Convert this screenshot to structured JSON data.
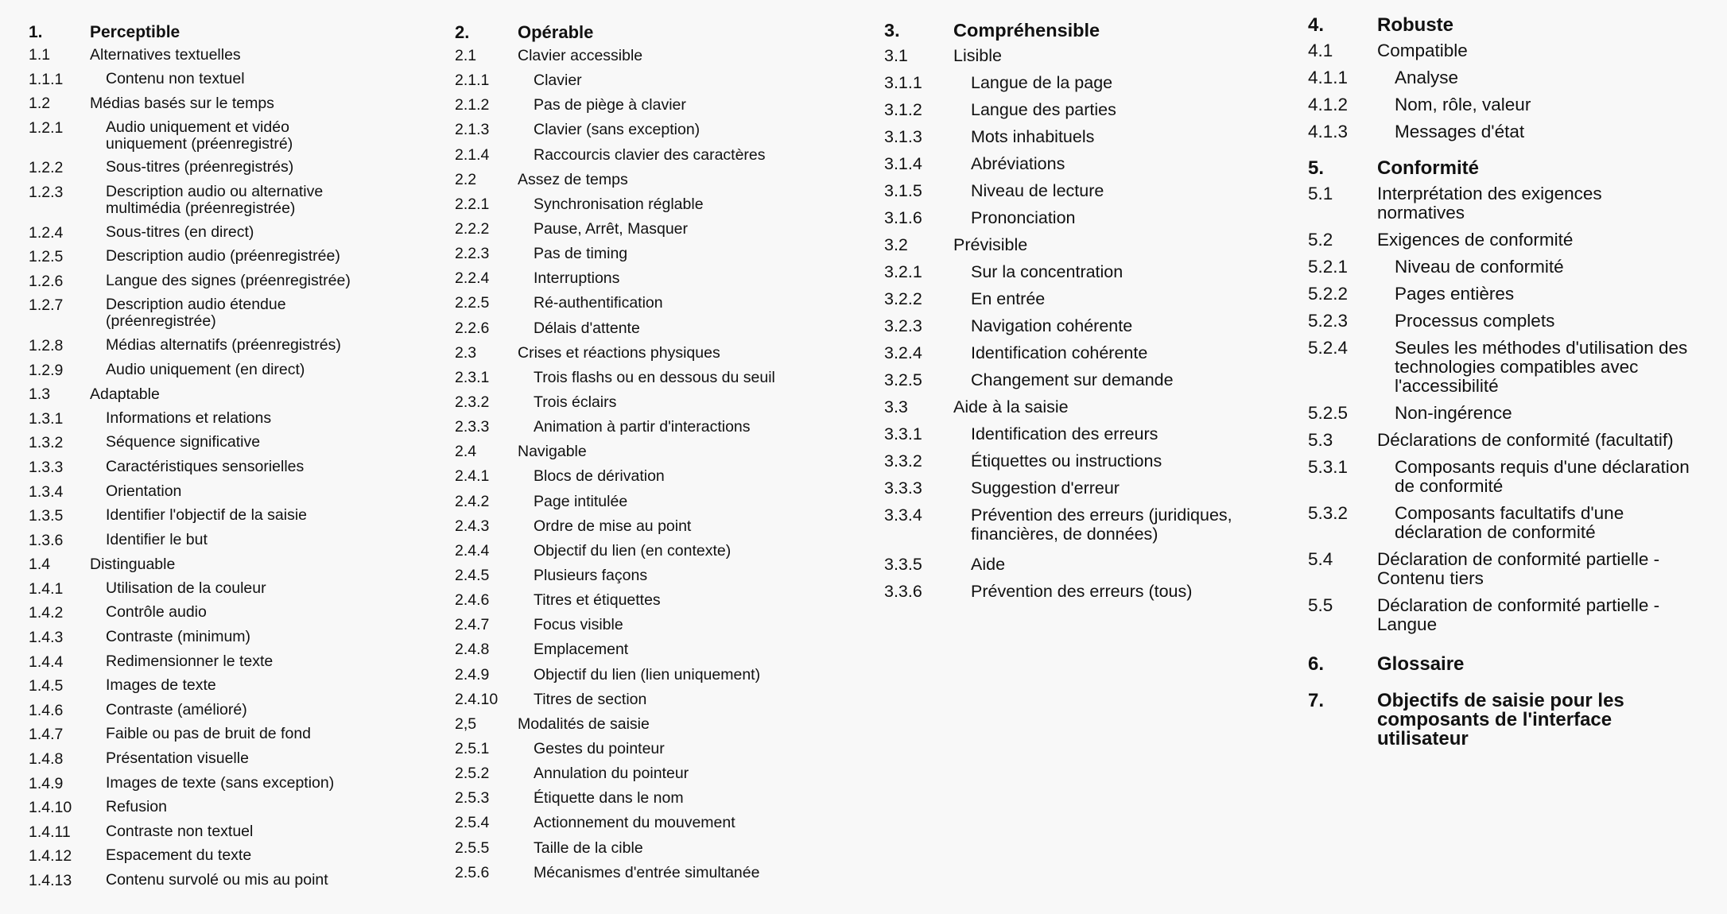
{
  "columns": [
    {
      "items": [
        {
          "num": "1.",
          "label": "Perceptible",
          "level": 0
        },
        {
          "num": "1.1",
          "label": "Alternatives textuelles",
          "level": 1
        },
        {
          "num": "1.1.1",
          "label": "Contenu non textuel",
          "level": 2
        },
        {
          "num": "1.2",
          "label": "Médias basés sur le temps",
          "level": 1
        },
        {
          "num": "1.2.1",
          "label": "Audio uniquement et vidéo\nuniquement (préenregistré)",
          "level": 2
        },
        {
          "num": "1.2.2",
          "label": "Sous-titres (préenregistrés)",
          "level": 2
        },
        {
          "num": "1.2.3",
          "label": "Description audio ou alternative\nmultimédia (préenregistrée)",
          "level": 2
        },
        {
          "num": "1.2.4",
          "label": "Sous-titres (en direct)",
          "level": 2
        },
        {
          "num": "1.2.5",
          "label": "Description audio (préenregistrée)",
          "level": 2
        },
        {
          "num": "1.2.6",
          "label": "Langue des signes (préenregistrée)",
          "level": 2
        },
        {
          "num": "1.2.7",
          "label": "Description audio étendue\n(préenregistrée)",
          "level": 2
        },
        {
          "num": "1.2.8",
          "label": "Médias alternatifs (préenregistrés)",
          "level": 2
        },
        {
          "num": "1.2.9",
          "label": "Audio uniquement (en direct)",
          "level": 2
        },
        {
          "num": "1.3",
          "label": "Adaptable",
          "level": 1
        },
        {
          "num": "1.3.1",
          "label": "Informations et relations",
          "level": 2
        },
        {
          "num": "1.3.2",
          "label": "Séquence significative",
          "level": 2
        },
        {
          "num": "1.3.3",
          "label": "Caractéristiques sensorielles",
          "level": 2
        },
        {
          "num": "1.3.4",
          "label": "Orientation",
          "level": 2
        },
        {
          "num": "1.3.5",
          "label": "Identifier l'objectif de la saisie",
          "level": 2
        },
        {
          "num": "1.3.6",
          "label": "Identifier le but",
          "level": 2
        },
        {
          "num": "1.4",
          "label": "Distinguable",
          "level": 1
        },
        {
          "num": "1.4.1",
          "label": "Utilisation de la couleur",
          "level": 2
        },
        {
          "num": "1.4.2",
          "label": "Contrôle audio",
          "level": 2
        },
        {
          "num": "1.4.3",
          "label": "Contraste (minimum)",
          "level": 2
        },
        {
          "num": "1.4.4",
          "label": "Redimensionner le texte",
          "level": 2
        },
        {
          "num": "1.4.5",
          "label": "Images de texte",
          "level": 2
        },
        {
          "num": "1.4.6",
          "label": "Contraste (amélioré)",
          "level": 2
        },
        {
          "num": "1.4.7",
          "label": "Faible ou pas de bruit de fond",
          "level": 2
        },
        {
          "num": "1.4.8",
          "label": "Présentation visuelle",
          "level": 2
        },
        {
          "num": "1.4.9",
          "label": "Images de texte (sans exception)",
          "level": 2
        },
        {
          "num": "1.4.10",
          "label": "Refusion",
          "level": 2
        },
        {
          "num": "1.4.11",
          "label": "Contraste non textuel",
          "level": 2
        },
        {
          "num": "1.4.12",
          "label": "Espacement du texte",
          "level": 2
        },
        {
          "num": "1.4.13",
          "label": "Contenu survolé ou mis au point",
          "level": 2
        }
      ]
    },
    {
      "items": [
        {
          "num": "2.",
          "label": "Opérable",
          "level": 0
        },
        {
          "num": "2.1",
          "label": "Clavier accessible",
          "level": 1
        },
        {
          "num": "2.1.1",
          "label": "Clavier",
          "level": 2
        },
        {
          "num": "2.1.2",
          "label": "Pas de piège à clavier",
          "level": 2
        },
        {
          "num": "2.1.3",
          "label": "Clavier (sans exception)",
          "level": 2
        },
        {
          "num": "2.1.4",
          "label": "Raccourcis clavier des caractères",
          "level": 2
        },
        {
          "num": "2.2",
          "label": "Assez de temps",
          "level": 1
        },
        {
          "num": "2.2.1",
          "label": "Synchronisation réglable",
          "level": 2
        },
        {
          "num": "2.2.2",
          "label": "Pause, Arrêt, Masquer",
          "level": 2
        },
        {
          "num": "2.2.3",
          "label": "Pas de timing",
          "level": 2
        },
        {
          "num": "2.2.4",
          "label": "Interruptions",
          "level": 2
        },
        {
          "num": "2.2.5",
          "label": "Ré-authentification",
          "level": 2
        },
        {
          "num": "2.2.6",
          "label": "Délais d'attente",
          "level": 2
        },
        {
          "num": "2.3",
          "label": "Crises et réactions physiques",
          "level": 1
        },
        {
          "num": "2.3.1",
          "label": "Trois flashs ou en dessous du seuil",
          "level": 2
        },
        {
          "num": "2.3.2",
          "label": "Trois éclairs",
          "level": 2
        },
        {
          "num": "2.3.3",
          "label": "Animation à partir d'interactions",
          "level": 2
        },
        {
          "num": "2.4",
          "label": "Navigable",
          "level": 1
        },
        {
          "num": "2.4.1",
          "label": "Blocs de dérivation",
          "level": 2
        },
        {
          "num": "2.4.2",
          "label": "Page intitulée",
          "level": 2
        },
        {
          "num": "2.4.3",
          "label": "Ordre de mise au point",
          "level": 2
        },
        {
          "num": "2.4.4",
          "label": "Objectif du lien (en contexte)",
          "level": 2
        },
        {
          "num": "2.4.5",
          "label": "Plusieurs façons",
          "level": 2
        },
        {
          "num": "2.4.6",
          "label": "Titres et étiquettes",
          "level": 2
        },
        {
          "num": "2.4.7",
          "label": "Focus visible",
          "level": 2
        },
        {
          "num": "2.4.8",
          "label": "Emplacement",
          "level": 2
        },
        {
          "num": "2.4.9",
          "label": "Objectif du lien (lien uniquement)",
          "level": 2
        },
        {
          "num": "2.4.10",
          "label": "Titres de section",
          "level": 2
        },
        {
          "num": "2,5",
          "label": "Modalités de saisie",
          "level": 1
        },
        {
          "num": "2.5.1",
          "label": "Gestes du pointeur",
          "level": 2
        },
        {
          "num": "2.5.2",
          "label": "Annulation du pointeur",
          "level": 2
        },
        {
          "num": "2.5.3",
          "label": "Étiquette dans le nom",
          "level": 2
        },
        {
          "num": "2.5.4",
          "label": "Actionnement du mouvement",
          "level": 2
        },
        {
          "num": "2.5.5",
          "label": "Taille de la cible",
          "level": 2
        },
        {
          "num": "2.5.6",
          "label": "Mécanismes d'entrée simultanée",
          "level": 2
        }
      ]
    },
    {
      "items": [
        {
          "num": "3.",
          "label": "Compréhensible",
          "level": 0
        },
        {
          "num": "3.1",
          "label": "Lisible",
          "level": 1
        },
        {
          "num": "3.1.1",
          "label": "Langue de la page",
          "level": 2
        },
        {
          "num": "3.1.2",
          "label": "Langue des parties",
          "level": 2
        },
        {
          "num": "3.1.3",
          "label": "Mots inhabituels",
          "level": 2
        },
        {
          "num": "3.1.4",
          "label": "Abréviations",
          "level": 2
        },
        {
          "num": "3.1.5",
          "label": "Niveau de lecture",
          "level": 2
        },
        {
          "num": "3.1.6",
          "label": "Prononciation",
          "level": 2
        },
        {
          "num": "3.2",
          "label": "Prévisible",
          "level": 1
        },
        {
          "num": "3.2.1",
          "label": "Sur la concentration",
          "level": 2
        },
        {
          "num": "3.2.2",
          "label": "En entrée",
          "level": 2
        },
        {
          "num": "3.2.3",
          "label": "Navigation cohérente",
          "level": 2
        },
        {
          "num": "3.2.4",
          "label": "Identification cohérente",
          "level": 2
        },
        {
          "num": "3.2.5",
          "label": "Changement sur demande",
          "level": 2
        },
        {
          "num": "3.3",
          "label": "Aide à la saisie",
          "level": 1
        },
        {
          "num": "3.3.1",
          "label": "Identification des erreurs",
          "level": 2
        },
        {
          "num": "3.3.2",
          "label": "Étiquettes ou instructions",
          "level": 2
        },
        {
          "num": "3.3.3",
          "label": "Suggestion d'erreur",
          "level": 2
        },
        {
          "num": "3.3.4",
          "label": "Prévention des erreurs (juridiques,\nfinancières, de données)",
          "level": 2
        },
        {
          "num": "3.3.5",
          "label": "Aide",
          "level": 2
        },
        {
          "num": "3.3.6",
          "label": "Prévention des erreurs (tous)",
          "level": 2
        }
      ]
    },
    {
      "items": [
        {
          "num": "4.",
          "label": "Robuste",
          "level": 0
        },
        {
          "num": "4.1",
          "label": "Compatible",
          "level": 1
        },
        {
          "num": "4.1.1",
          "label": "Analyse",
          "level": 2
        },
        {
          "num": "4.1.2",
          "label": "Nom, rôle, valeur",
          "level": 2
        },
        {
          "num": "4.1.3",
          "label": "Messages d'état",
          "level": 2
        },
        {
          "num": "5.",
          "label": "Conformité",
          "level": 0
        },
        {
          "num": "5.1",
          "label": "Interprétation des exigences\nnormatives",
          "level": 1
        },
        {
          "num": "5.2",
          "label": "Exigences de conformité",
          "level": 1
        },
        {
          "num": "5.2.1",
          "label": "Niveau de conformité",
          "level": 2
        },
        {
          "num": "5.2.2",
          "label": "Pages entières",
          "level": 2
        },
        {
          "num": "5.2.3",
          "label": "Processus complets",
          "level": 2
        },
        {
          "num": "5.2.4",
          "label": "Seules les méthodes d'utilisation des\ntechnologies compatibles avec\nl'accessibilité",
          "level": 2
        },
        {
          "num": "5.2.5",
          "label": "Non-ingérence",
          "level": 2
        },
        {
          "num": "5.3",
          "label": "Déclarations de conformité (facultatif)",
          "level": 1
        },
        {
          "num": "5.3.1",
          "label": "Composants requis d'une déclaration\nde conformité",
          "level": 2
        },
        {
          "num": "5.3.2",
          "label": "Composants facultatifs d'une\ndéclaration de conformité",
          "level": 2
        },
        {
          "num": "5.4",
          "label": "Déclaration de conformité partielle -\nContenu tiers",
          "level": 1
        },
        {
          "num": "5.5",
          "label": "Déclaration de conformité partielle -\nLangue",
          "level": 1
        },
        {
          "num": "6.",
          "label": "Glossaire",
          "level": 0
        },
        {
          "num": "7.",
          "label": "Objectifs de saisie pour les\ncomposants de l'interface\nutilisateur",
          "level": 0
        }
      ]
    }
  ]
}
